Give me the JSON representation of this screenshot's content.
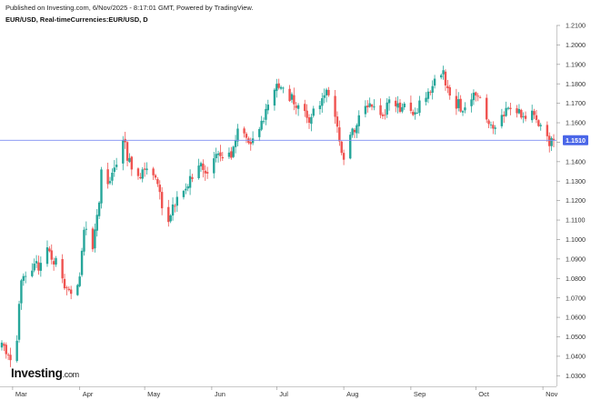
{
  "header": {
    "published": "Published on Investing.com, 6/Nov/2025 - 8:17:01 GMT, Powered by TradingView.",
    "symbol": "EUR/USD, Real-timeCurrencies:EUR/USD, D"
  },
  "logo": {
    "name": "Investing",
    "domain": ".com"
  },
  "colors": {
    "up": "#26a69a",
    "down": "#ef5350",
    "price_line": "#7e8ef2",
    "price_label_bg": "#4a66e8",
    "grid": "#d0d0d0"
  },
  "chart_data": {
    "type": "candlestick",
    "title": "EUR/USD, Real-timeCurrencies:EUR/USD, D",
    "ylim": [
      1.025,
      1.21
    ],
    "y_ticks": [
      "1.0300",
      "1.0400",
      "1.0500",
      "1.0600",
      "1.0700",
      "1.0800",
      "1.0900",
      "1.1000",
      "1.1100",
      "1.1200",
      "1.1300",
      "1.1400",
      "1.1500",
      "1.1600",
      "1.1700",
      "1.1800",
      "1.1900",
      "1.2000",
      "1.2100"
    ],
    "x_ticks": [
      "Mar",
      "Apr",
      "May",
      "Jun",
      "Jul",
      "Aug",
      "Sep",
      "Oct",
      "Nov"
    ],
    "last_price": "1.1510",
    "grid": false,
    "anchors": [
      {
        "date": "2025-02-24",
        "close": 1.047
      },
      {
        "date": "2025-02-28",
        "close": 1.038
      },
      {
        "date": "2025-03-03",
        "close": 1.048
      },
      {
        "date": "2025-03-05",
        "close": 1.079
      },
      {
        "date": "2025-03-10",
        "close": 1.084
      },
      {
        "date": "2025-03-14",
        "close": 1.088
      },
      {
        "date": "2025-03-18",
        "close": 1.094
      },
      {
        "date": "2025-03-24",
        "close": 1.08
      },
      {
        "date": "2025-03-27",
        "close": 1.074
      },
      {
        "date": "2025-04-01",
        "close": 1.081
      },
      {
        "date": "2025-04-03",
        "close": 1.105
      },
      {
        "date": "2025-04-07",
        "close": 1.095
      },
      {
        "date": "2025-04-10",
        "close": 1.119
      },
      {
        "date": "2025-04-11",
        "close": 1.136
      },
      {
        "date": "2025-04-15",
        "close": 1.13
      },
      {
        "date": "2025-04-21",
        "close": 1.151
      },
      {
        "date": "2025-04-25",
        "close": 1.136
      },
      {
        "date": "2025-05-05",
        "close": 1.133
      },
      {
        "date": "2025-05-12",
        "close": 1.109
      },
      {
        "date": "2025-05-14",
        "close": 1.118
      },
      {
        "date": "2025-05-19",
        "close": 1.125
      },
      {
        "date": "2025-05-26",
        "close": 1.138
      },
      {
        "date": "2025-05-29",
        "close": 1.134
      },
      {
        "date": "2025-06-03",
        "close": 1.144
      },
      {
        "date": "2025-06-10",
        "close": 1.142
      },
      {
        "date": "2025-06-13",
        "close": 1.157
      },
      {
        "date": "2025-06-19",
        "close": 1.149
      },
      {
        "date": "2025-06-24",
        "close": 1.161
      },
      {
        "date": "2025-07-01",
        "close": 1.18
      },
      {
        "date": "2025-07-04",
        "close": 1.178
      },
      {
        "date": "2025-07-11",
        "close": 1.169
      },
      {
        "date": "2025-07-16",
        "close": 1.16
      },
      {
        "date": "2025-07-24",
        "close": 1.177
      },
      {
        "date": "2025-07-29",
        "close": 1.158
      },
      {
        "date": "2025-08-01",
        "close": 1.141
      },
      {
        "date": "2025-08-05",
        "close": 1.157
      },
      {
        "date": "2025-08-13",
        "close": 1.17
      },
      {
        "date": "2025-08-20",
        "close": 1.164
      },
      {
        "date": "2025-08-22",
        "close": 1.172
      },
      {
        "date": "2025-08-28",
        "close": 1.168
      },
      {
        "date": "2025-09-02",
        "close": 1.164
      },
      {
        "date": "2025-09-09",
        "close": 1.176
      },
      {
        "date": "2025-09-16",
        "close": 1.187
      },
      {
        "date": "2025-09-19",
        "close": 1.174
      },
      {
        "date": "2025-09-25",
        "close": 1.166
      },
      {
        "date": "2025-10-01",
        "close": 1.174
      },
      {
        "date": "2025-10-09",
        "close": 1.157
      },
      {
        "date": "2025-10-17",
        "close": 1.167
      },
      {
        "date": "2025-10-24",
        "close": 1.162
      },
      {
        "date": "2025-10-28",
        "close": 1.164
      },
      {
        "date": "2025-11-04",
        "close": 1.148
      },
      {
        "date": "2025-11-06",
        "close": 1.151
      }
    ]
  }
}
